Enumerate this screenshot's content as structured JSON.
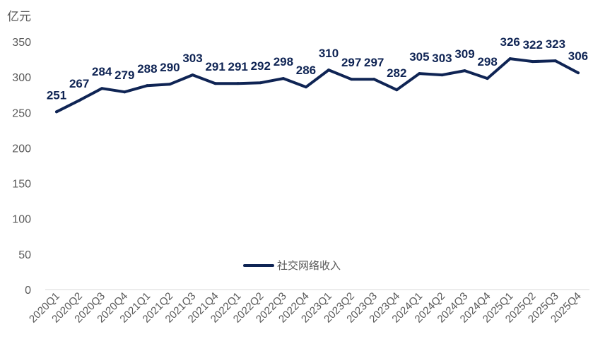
{
  "chart_data": {
    "type": "line",
    "ylabel": "亿元",
    "ylim": [
      0,
      350
    ],
    "yticks": [
      0,
      50,
      100,
      150,
      200,
      250,
      300,
      350
    ],
    "grid": false,
    "legend_position": "center",
    "color": "#0f2454",
    "categories": [
      "2020Q1",
      "2020Q2",
      "2020Q3",
      "2020Q4",
      "2021Q1",
      "2021Q2",
      "2021Q3",
      "2021Q4",
      "2022Q1",
      "2022Q2",
      "2022Q3",
      "2022Q4",
      "2023Q1",
      "2023Q2",
      "2023Q3",
      "2023Q4",
      "2024Q1",
      "2024Q2",
      "2024Q3",
      "2024Q4",
      "2025Q1",
      "2025Q2",
      "2025Q3",
      "2025Q4"
    ],
    "series": [
      {
        "name": "社交网络收入",
        "values": [
          251,
          267,
          284,
          279,
          288,
          290,
          303,
          291,
          291,
          292,
          298,
          286,
          310,
          297,
          297,
          282,
          305,
          303,
          309,
          298,
          326,
          322,
          323,
          306
        ]
      }
    ]
  }
}
